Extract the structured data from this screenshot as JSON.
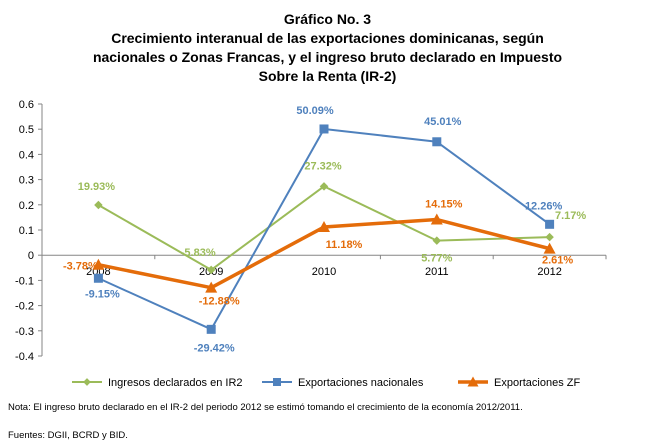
{
  "title": {
    "line1": "Gráfico No. 3",
    "line2": "Crecimiento interanual de las exportaciones dominicanas, según",
    "line3": "nacionales o Zonas Francas, y el ingreso bruto declarado en Impuesto",
    "line4": "Sobre la Renta (IR-2)"
  },
  "note": "Nota: El ingreso bruto declarado en el IR-2 del periodo 2012 se estimó tomando el crecimiento de la economía 2012/2011.",
  "source": "Fuentes: DGII, BCRD y BID.",
  "chart_data": {
    "type": "line",
    "categories": [
      "2008",
      "2009",
      "2010",
      "2011",
      "2012"
    ],
    "ylim": [
      -0.4,
      0.6
    ],
    "yticks": [
      "-0.4",
      "-0.3",
      "-0.2",
      "-0.1",
      "0",
      "0.1",
      "0.2",
      "0.3",
      "0.4",
      "0.5",
      "0.6"
    ],
    "legend_position": "bottom",
    "series": [
      {
        "name": "Ingresos declarados en IR2",
        "values": [
          0.1993,
          -0.0583,
          0.2732,
          0.0577,
          0.0717
        ],
        "labels": [
          "19.93%",
          "-5.83%",
          "27.32%",
          "5.77%",
          "7.17%"
        ],
        "color": "#9BBB59",
        "marker": "diamond"
      },
      {
        "name": "Exportaciones nacionales",
        "values": [
          -0.0915,
          -0.2942,
          0.5009,
          0.4501,
          0.1226
        ],
        "labels": [
          "-9.15%",
          "-29.42%",
          "50.09%",
          "45.01%",
          "12.26%"
        ],
        "color": "#4F81BD",
        "marker": "square"
      },
      {
        "name": "Exportaciones ZF",
        "values": [
          -0.0378,
          -0.1288,
          0.1118,
          0.1415,
          0.0261
        ],
        "labels": [
          "-3.78%",
          "-12.88%",
          "11.18%",
          "14.15%",
          "2.61%"
        ],
        "color": "#E46C0A",
        "marker": "triangle"
      }
    ]
  }
}
